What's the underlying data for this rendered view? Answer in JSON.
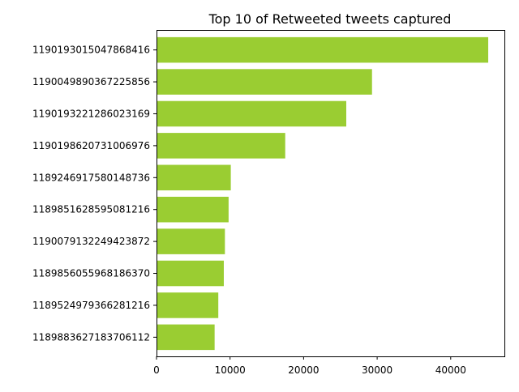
{
  "chart_data": {
    "type": "bar",
    "orientation": "horizontal",
    "title": "Top 10 of Retweeted tweets captured",
    "xlabel": "",
    "ylabel": "",
    "bar_color": "#9acd32",
    "xlim": [
      0,
      47300
    ],
    "x_ticks": [
      0,
      10000,
      20000,
      30000,
      40000
    ],
    "x_tick_labels": [
      "0",
      "10000",
      "20000",
      "30000",
      "40000"
    ],
    "categories": [
      "1190193015047868416",
      "1190049890367225856",
      "1190193221286023169",
      "1190198620731006976",
      "1189246917580148736",
      "1189851628595081216",
      "1190079132249423872",
      "1189856055968186370",
      "1189524979366281216",
      "1189883627183706112"
    ],
    "values": [
      45100,
      29300,
      25800,
      17500,
      10100,
      9800,
      9300,
      9150,
      8400,
      7900
    ],
    "grid": false,
    "legend": "none"
  }
}
